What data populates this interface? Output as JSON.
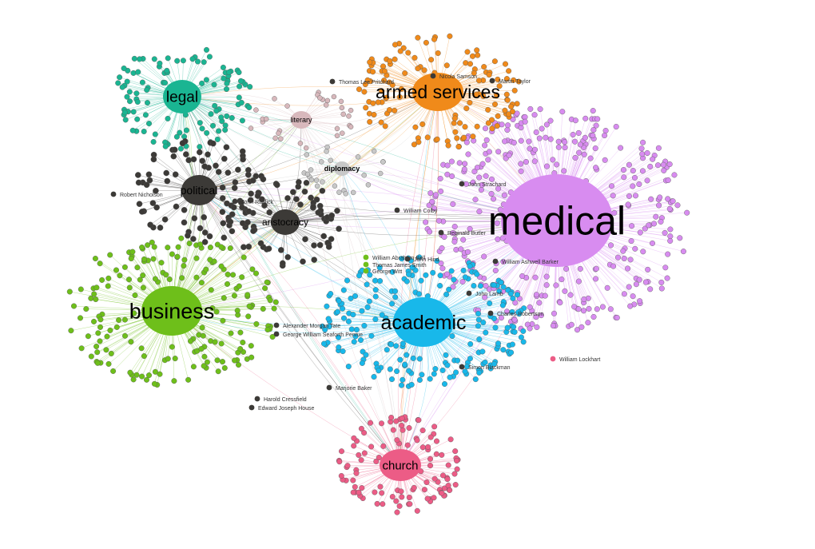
{
  "colors": {
    "medical": "#d88cf0",
    "armed_services": "#f08a1a",
    "legal": "#1ab592",
    "business": "#6ebf1a",
    "academic": "#18b8ea",
    "church": "#ec5c86",
    "political": "#3c3a37",
    "aristocracy": "#3c3a37",
    "literary": "#d8b8bc",
    "diplomacy": "#c8c8c8"
  },
  "hubs": [
    {
      "id": "medical",
      "label": "medical"
    },
    {
      "id": "armed_services",
      "label": "armed services"
    },
    {
      "id": "legal",
      "label": "legal"
    },
    {
      "id": "business",
      "label": "business"
    },
    {
      "id": "academic",
      "label": "academic"
    },
    {
      "id": "church",
      "label": "church"
    },
    {
      "id": "political",
      "label": "political"
    },
    {
      "id": "aristocracy",
      "label": "aristocracy"
    },
    {
      "id": "literary",
      "label": "literary"
    },
    {
      "id": "diplomacy",
      "label": "diplomacy"
    }
  ],
  "named_people": [
    "William Lockhart",
    "William Abraham Bell",
    "Thomas James Smith",
    "George Witt",
    "Alexander Morgan Tate",
    "George William Seaforth Pennie",
    "Harold Cressfield",
    "Edward Joseph House",
    "William Colby",
    "Thomas Lee Pritchard",
    "John Strachard",
    "Martin Taylor",
    "John Hind",
    "Nicola Samson",
    "Reginald Butler",
    "John Riddick",
    "Robert Nicholson",
    "Marjorie Baker",
    "John Lamb",
    "William Ashwell Barker",
    "Charles Robertson",
    "Simon Blackman"
  ]
}
